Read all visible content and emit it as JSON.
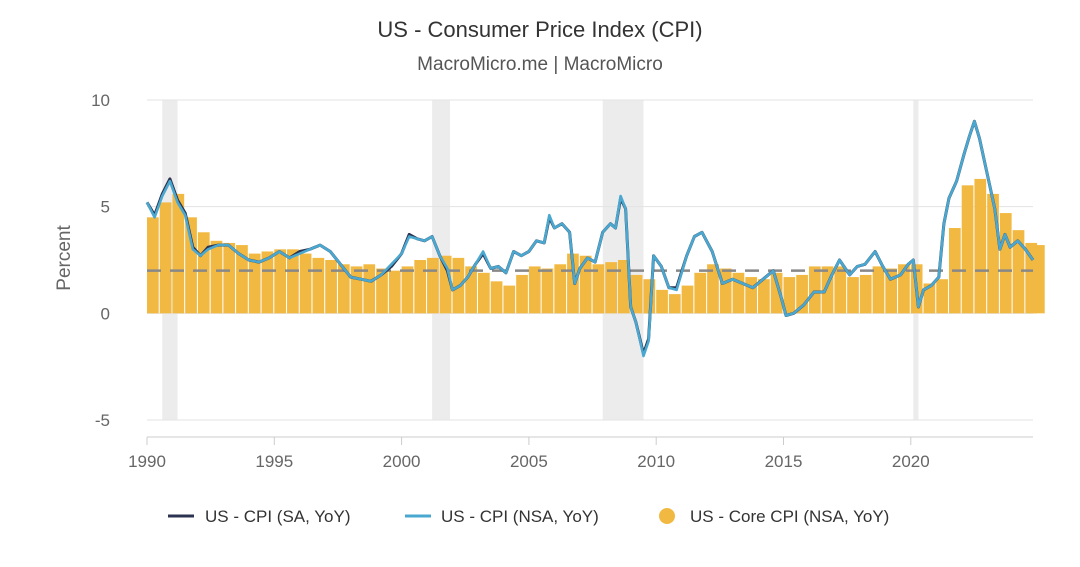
{
  "chart_data": {
    "type": "line",
    "title": "US - Consumer Price Index (CPI)",
    "subtitle": "MacroMicro.me | MacroMicro",
    "xlabel": "",
    "ylabel": "Percent",
    "xlim": [
      1990,
      2024.8
    ],
    "ylim": [
      -5,
      10
    ],
    "x_ticks": [
      1990,
      1995,
      2000,
      2005,
      2010,
      2015,
      2020
    ],
    "y_ticks": [
      -5,
      0,
      5,
      10
    ],
    "grid": "horizontal",
    "legend_position": "bottom",
    "reference_line": 2,
    "recessions": [
      [
        1990.6,
        1991.2
      ],
      [
        2001.2,
        2001.9
      ],
      [
        2007.9,
        2009.5
      ],
      [
        2020.1,
        2020.3
      ]
    ],
    "colors": {
      "cpi_sa": "#2b3350",
      "cpi_nsa": "#4aa8d0",
      "core": "#f2b942",
      "recession": "#ececec",
      "reference": "#888888",
      "grid": "#e3e3e3"
    },
    "series": [
      {
        "name": "US - CPI (SA, YoY)",
        "type": "line",
        "x": [
          1990.0,
          1990.3,
          1990.6,
          1990.9,
          1991.2,
          1991.5,
          1991.8,
          1992.1,
          1992.4,
          1992.8,
          1993.2,
          1993.6,
          1994.0,
          1994.4,
          1994.8,
          1995.2,
          1995.6,
          1996.0,
          1996.4,
          1996.8,
          1997.2,
          1997.6,
          1998.0,
          1998.4,
          1998.8,
          1999.2,
          1999.6,
          2000.0,
          2000.3,
          2000.6,
          2000.9,
          2001.2,
          2001.5,
          2001.8,
          2002.0,
          2002.3,
          2002.6,
          2002.9,
          2003.2,
          2003.5,
          2003.8,
          2004.1,
          2004.4,
          2004.7,
          2005.0,
          2005.3,
          2005.6,
          2005.8,
          2006.0,
          2006.3,
          2006.6,
          2006.8,
          2007.0,
          2007.3,
          2007.6,
          2007.9,
          2008.2,
          2008.4,
          2008.6,
          2008.8,
          2009.0,
          2009.2,
          2009.5,
          2009.7,
          2009.9,
          2010.2,
          2010.5,
          2010.8,
          2011.2,
          2011.5,
          2011.8,
          2012.2,
          2012.6,
          2013.0,
          2013.4,
          2013.8,
          2014.2,
          2014.6,
          2014.9,
          2015.1,
          2015.4,
          2015.8,
          2016.2,
          2016.6,
          2016.9,
          2017.2,
          2017.6,
          2017.9,
          2018.2,
          2018.6,
          2018.9,
          2019.2,
          2019.6,
          2019.9,
          2020.1,
          2020.3,
          2020.5,
          2020.8,
          2021.1,
          2021.3,
          2021.5,
          2021.8,
          2022.1,
          2022.3,
          2022.5,
          2022.7,
          2022.9,
          2023.1,
          2023.3,
          2023.5,
          2023.7,
          2023.9,
          2024.2,
          2024.5,
          2024.8
        ],
        "values": [
          5.2,
          4.6,
          5.6,
          6.3,
          5.3,
          4.7,
          3.1,
          2.7,
          3.1,
          3.2,
          3.2,
          2.8,
          2.5,
          2.4,
          2.6,
          2.9,
          2.6,
          2.9,
          3.0,
          3.2,
          2.9,
          2.3,
          1.7,
          1.6,
          1.5,
          1.8,
          2.2,
          2.8,
          3.7,
          3.5,
          3.4,
          3.6,
          2.7,
          2.0,
          1.1,
          1.3,
          1.7,
          2.3,
          2.8,
          2.1,
          2.2,
          1.9,
          2.9,
          2.7,
          2.9,
          3.4,
          3.3,
          4.5,
          4.0,
          4.2,
          3.8,
          1.4,
          2.1,
          2.6,
          2.4,
          3.8,
          4.2,
          4.0,
          5.4,
          4.9,
          0.3,
          -0.4,
          -1.9,
          -1.2,
          2.7,
          2.2,
          1.2,
          1.2,
          2.7,
          3.6,
          3.8,
          2.9,
          1.4,
          1.6,
          1.4,
          1.2,
          1.6,
          2.0,
          0.8,
          -0.1,
          0.0,
          0.4,
          1.0,
          1.0,
          1.8,
          2.5,
          1.8,
          2.2,
          2.3,
          2.9,
          2.2,
          1.6,
          1.8,
          2.3,
          2.5,
          0.3,
          1.1,
          1.3,
          1.7,
          4.2,
          5.4,
          6.2,
          7.5,
          8.3,
          9.0,
          8.2,
          7.1,
          6.0,
          4.9,
          3.0,
          3.7,
          3.1,
          3.4,
          3.0,
          2.5
        ]
      },
      {
        "name": "US - CPI (NSA, YoY)",
        "type": "line",
        "x": [
          1990.0,
          1990.3,
          1990.6,
          1990.9,
          1991.2,
          1991.5,
          1991.8,
          1992.1,
          1992.4,
          1992.8,
          1993.2,
          1993.6,
          1994.0,
          1994.4,
          1994.8,
          1995.2,
          1995.6,
          1996.0,
          1996.4,
          1996.8,
          1997.2,
          1997.6,
          1998.0,
          1998.4,
          1998.8,
          1999.2,
          1999.6,
          2000.0,
          2000.3,
          2000.6,
          2000.9,
          2001.2,
          2001.5,
          2001.8,
          2002.0,
          2002.3,
          2002.6,
          2002.9,
          2003.2,
          2003.5,
          2003.8,
          2004.1,
          2004.4,
          2004.7,
          2005.0,
          2005.3,
          2005.6,
          2005.8,
          2006.0,
          2006.3,
          2006.6,
          2006.8,
          2007.0,
          2007.3,
          2007.6,
          2007.9,
          2008.2,
          2008.4,
          2008.6,
          2008.8,
          2009.0,
          2009.2,
          2009.5,
          2009.7,
          2009.9,
          2010.2,
          2010.5,
          2010.8,
          2011.2,
          2011.5,
          2011.8,
          2012.2,
          2012.6,
          2013.0,
          2013.4,
          2013.8,
          2014.2,
          2014.6,
          2014.9,
          2015.1,
          2015.4,
          2015.8,
          2016.2,
          2016.6,
          2016.9,
          2017.2,
          2017.6,
          2017.9,
          2018.2,
          2018.6,
          2018.9,
          2019.2,
          2019.6,
          2019.9,
          2020.1,
          2020.3,
          2020.5,
          2020.8,
          2021.1,
          2021.3,
          2021.5,
          2021.8,
          2022.1,
          2022.3,
          2022.5,
          2022.7,
          2022.9,
          2023.1,
          2023.3,
          2023.5,
          2023.7,
          2023.9,
          2024.2,
          2024.5,
          2024.8
        ],
        "values": [
          5.2,
          4.5,
          5.5,
          6.2,
          5.2,
          4.6,
          3.0,
          2.7,
          3.0,
          3.2,
          3.2,
          2.8,
          2.5,
          2.4,
          2.6,
          2.9,
          2.6,
          2.8,
          3.0,
          3.2,
          2.9,
          2.3,
          1.7,
          1.6,
          1.5,
          1.8,
          2.3,
          2.8,
          3.6,
          3.5,
          3.4,
          3.6,
          2.7,
          2.1,
          1.1,
          1.3,
          1.7,
          2.3,
          2.9,
          2.1,
          2.2,
          1.9,
          2.9,
          2.7,
          2.9,
          3.4,
          3.3,
          4.6,
          4.0,
          4.2,
          3.8,
          1.4,
          2.1,
          2.6,
          2.4,
          3.8,
          4.2,
          4.0,
          5.5,
          4.9,
          0.3,
          -0.4,
          -2.0,
          -1.3,
          2.7,
          2.2,
          1.2,
          1.1,
          2.7,
          3.6,
          3.8,
          2.9,
          1.4,
          1.6,
          1.4,
          1.2,
          1.6,
          2.0,
          0.8,
          -0.1,
          0.0,
          0.4,
          1.0,
          1.0,
          1.8,
          2.5,
          1.8,
          2.2,
          2.3,
          2.9,
          2.2,
          1.6,
          1.8,
          2.3,
          2.5,
          0.3,
          1.1,
          1.3,
          1.7,
          4.2,
          5.4,
          6.2,
          7.5,
          8.3,
          9.0,
          8.2,
          7.1,
          6.0,
          4.9,
          3.0,
          3.7,
          3.1,
          3.4,
          3.0,
          2.5
        ]
      },
      {
        "name": "US - Core CPI (NSA, YoY)",
        "type": "bar",
        "x": [
          1990.0,
          1990.5,
          1991.0,
          1991.5,
          1992.0,
          1992.5,
          1993.0,
          1993.5,
          1994.0,
          1994.5,
          1995.0,
          1995.5,
          1996.0,
          1996.5,
          1997.0,
          1997.5,
          1998.0,
          1998.5,
          1999.0,
          1999.5,
          2000.0,
          2000.5,
          2001.0,
          2001.5,
          2002.0,
          2002.5,
          2003.0,
          2003.5,
          2004.0,
          2004.5,
          2005.0,
          2005.5,
          2006.0,
          2006.5,
          2007.0,
          2007.5,
          2008.0,
          2008.5,
          2009.0,
          2009.5,
          2010.0,
          2010.5,
          2011.0,
          2011.5,
          2012.0,
          2012.5,
          2013.0,
          2013.5,
          2014.0,
          2014.5,
          2015.0,
          2015.5,
          2016.0,
          2016.5,
          2017.0,
          2017.5,
          2018.0,
          2018.5,
          2019.0,
          2019.5,
          2020.0,
          2020.5,
          2021.0,
          2021.5,
          2022.0,
          2022.5,
          2023.0,
          2023.5,
          2024.0,
          2024.5,
          2024.8
        ],
        "values": [
          4.5,
          5.2,
          5.6,
          4.5,
          3.8,
          3.4,
          3.3,
          3.2,
          2.8,
          2.9,
          3.0,
          3.0,
          2.8,
          2.6,
          2.5,
          2.3,
          2.2,
          2.3,
          2.1,
          2.0,
          2.2,
          2.5,
          2.6,
          2.7,
          2.6,
          2.2,
          1.9,
          1.5,
          1.3,
          1.8,
          2.2,
          2.1,
          2.3,
          2.8,
          2.7,
          2.3,
          2.4,
          2.5,
          1.8,
          1.6,
          1.1,
          0.9,
          1.3,
          1.9,
          2.3,
          2.1,
          1.9,
          1.7,
          1.6,
          1.9,
          1.7,
          1.8,
          2.2,
          2.2,
          2.2,
          1.7,
          1.8,
          2.2,
          2.1,
          2.3,
          2.3,
          1.4,
          1.6,
          4.0,
          6.0,
          6.3,
          5.6,
          4.7,
          3.9,
          3.3,
          3.2
        ]
      }
    ]
  },
  "legend": {
    "items": [
      {
        "label": "US - CPI (SA, YoY)",
        "symbol": "line",
        "color": "#2b3350"
      },
      {
        "label": "US - CPI (NSA, YoY)",
        "symbol": "line",
        "color": "#4aa8d0"
      },
      {
        "label": "US - Core CPI (NSA, YoY)",
        "symbol": "dot",
        "color": "#f2b942"
      }
    ]
  }
}
